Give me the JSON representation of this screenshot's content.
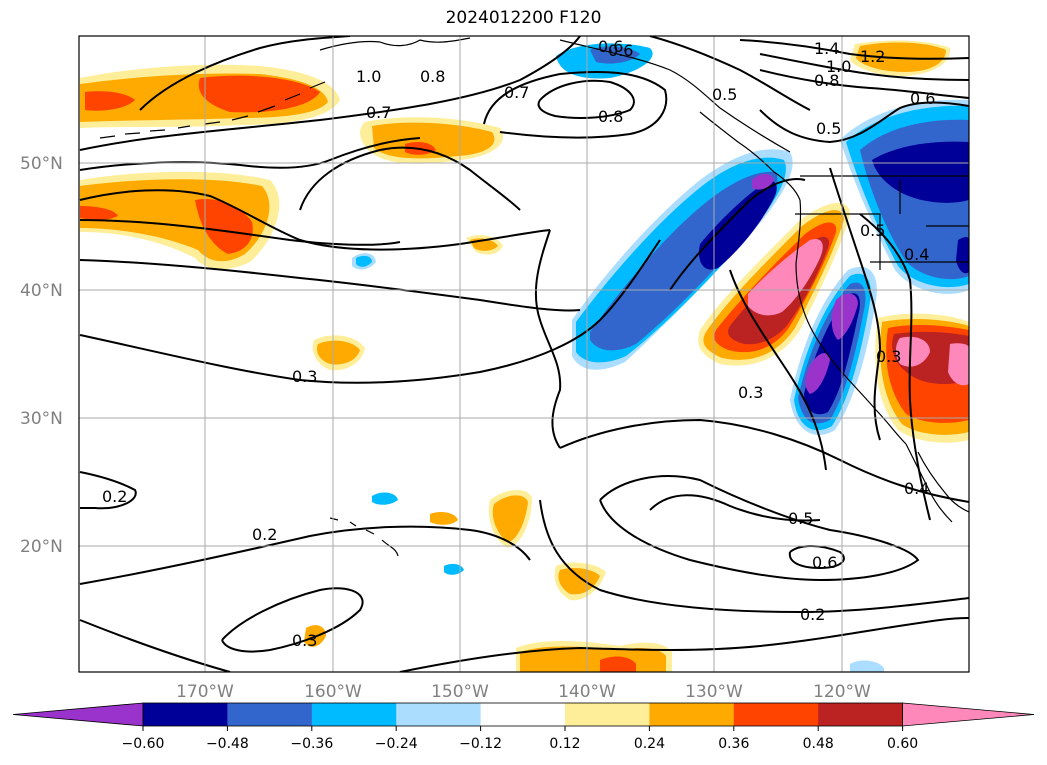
{
  "title": "2024012200 F120",
  "lat_labels": [
    "50°N",
    "40°N",
    "30°N",
    "20°N"
  ],
  "lon_labels": [
    "170°W",
    "160°W",
    "150°W",
    "140°W",
    "130°W",
    "120°W"
  ],
  "colorbar": {
    "ticks": [
      "−0.60",
      "−0.48",
      "−0.36",
      "−0.24",
      "−0.12",
      "0.12",
      "0.24",
      "0.36",
      "0.48",
      "0.60"
    ],
    "colors": [
      "#9933cc",
      "#000099",
      "#3366cc",
      "#00bbff",
      "#aaddff",
      "#ffffff",
      "#ffee99",
      "#ffaa00",
      "#ff4400",
      "#bb2222",
      "#ff88bb"
    ]
  },
  "contour_labels": [
    "1.4",
    "1.2",
    "1.0",
    "0.8",
    "0.6",
    "0.7",
    "0.8",
    "0.5",
    "0.6",
    "0.8",
    "1.0",
    "0.7",
    "0.6",
    "0.5",
    "0.5",
    "0.4",
    "0.3",
    "0.3",
    "0.3",
    "0.4",
    "0.2",
    "0.2",
    "0.5",
    "0.6",
    "0.2",
    "0.3"
  ]
}
